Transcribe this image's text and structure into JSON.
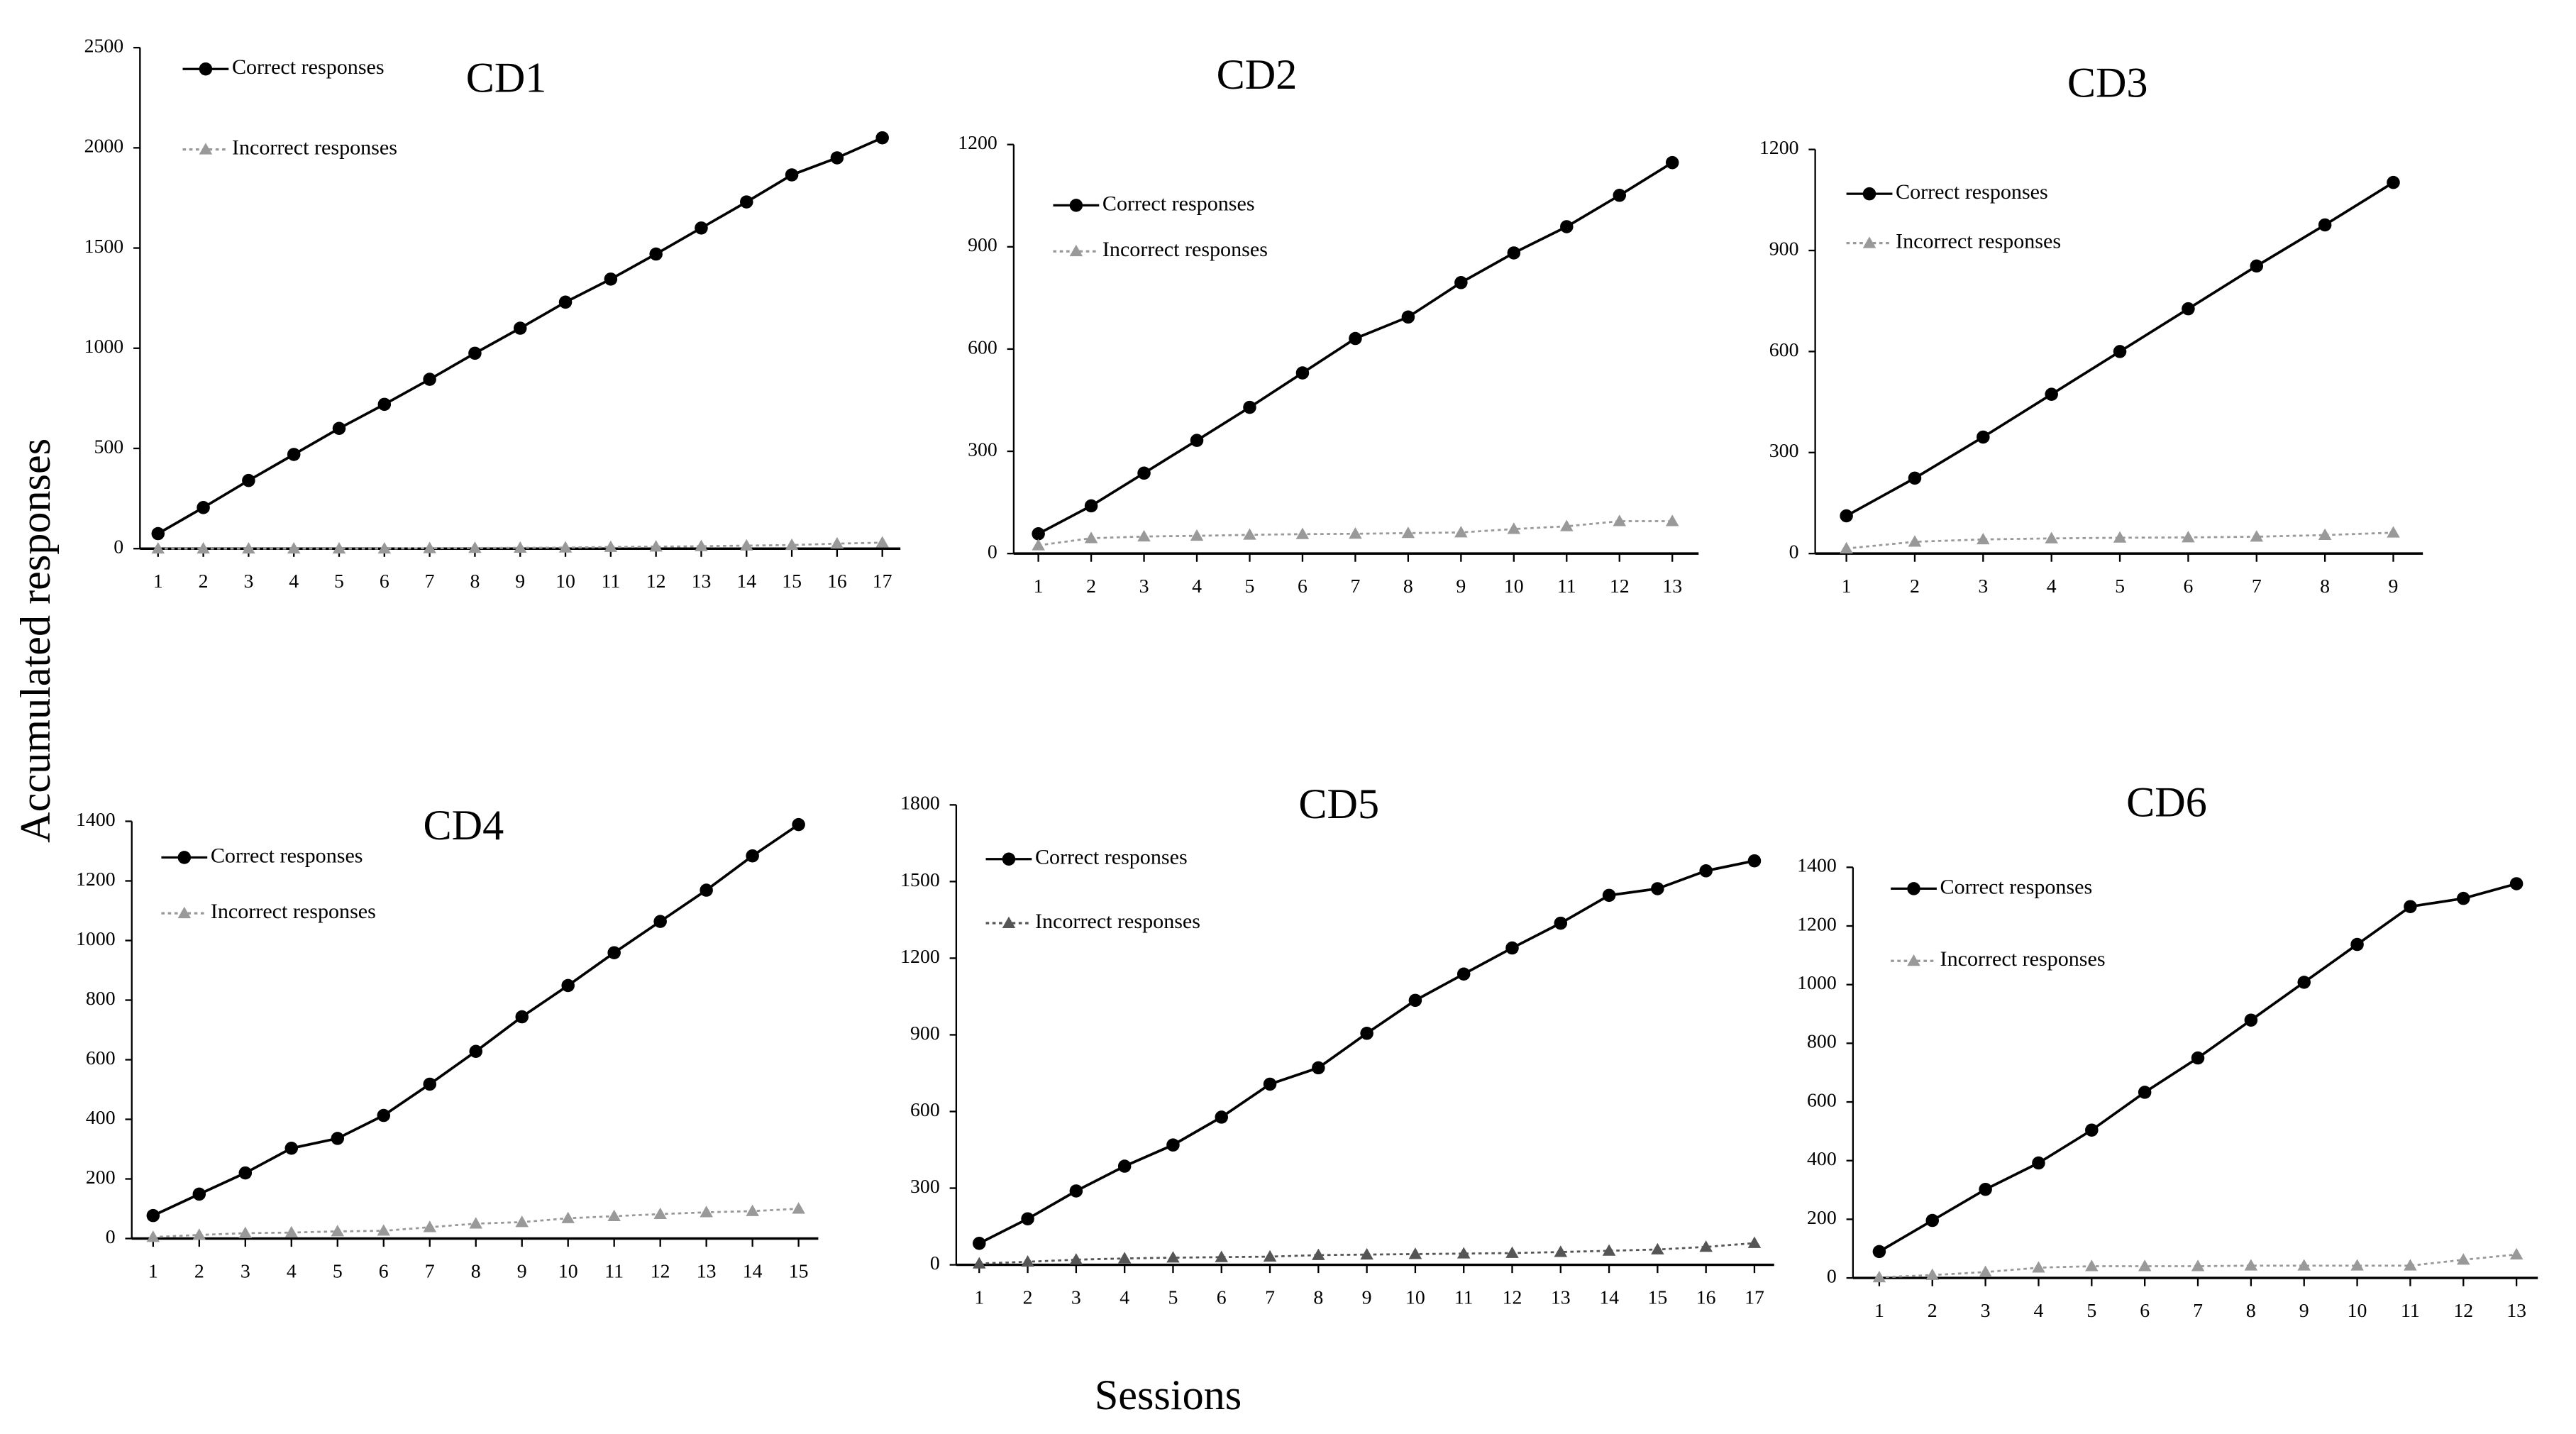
{
  "y_label": "Accumulated responses",
  "x_label": "Sessions",
  "chart_data": [
    {
      "type": "line",
      "title": "CD1",
      "x": [
        1,
        2,
        3,
        4,
        5,
        6,
        7,
        8,
        9,
        10,
        11,
        12,
        13,
        14,
        15,
        16,
        17
      ],
      "xlim": [
        1,
        17
      ],
      "ylim": [
        0,
        2500
      ],
      "yticks": [
        0,
        500,
        1000,
        1500,
        2000,
        2500
      ],
      "series": [
        {
          "name": "Correct responses",
          "color": "#000000",
          "marker": "circle",
          "values": [
            75,
            205,
            340,
            470,
            600,
            720,
            845,
            975,
            1100,
            1230,
            1345,
            1470,
            1600,
            1730,
            1865,
            1950,
            2050
          ]
        },
        {
          "name": "Incorrect responses",
          "color": "#999999",
          "marker": "triangle",
          "values": [
            0,
            0,
            0,
            0,
            0,
            0,
            2,
            3,
            4,
            5,
            8,
            10,
            12,
            15,
            18,
            25,
            30
          ]
        }
      ]
    },
    {
      "type": "line",
      "title": "CD2",
      "x": [
        1,
        2,
        3,
        4,
        5,
        6,
        7,
        8,
        9,
        10,
        11,
        12,
        13
      ],
      "xlim": [
        1,
        13
      ],
      "ylim": [
        0,
        1200
      ],
      "yticks": [
        0,
        300,
        600,
        900,
        1200
      ],
      "series": [
        {
          "name": "Correct responses",
          "color": "#000000",
          "marker": "circle",
          "values": [
            58,
            140,
            236,
            332,
            429,
            530,
            631,
            694,
            795,
            882,
            959,
            1051,
            1147
          ]
        },
        {
          "name": "Incorrect responses",
          "color": "#999999",
          "marker": "triangle",
          "values": [
            24,
            45,
            50,
            52,
            55,
            57,
            58,
            60,
            62,
            72,
            80,
            95,
            95
          ]
        }
      ]
    },
    {
      "type": "line",
      "title": "CD3",
      "x": [
        1,
        2,
        3,
        4,
        5,
        6,
        7,
        8,
        9
      ],
      "xlim": [
        1,
        9
      ],
      "ylim": [
        0,
        1200
      ],
      "yticks": [
        0,
        300,
        600,
        900,
        1200
      ],
      "series": [
        {
          "name": "Correct responses",
          "color": "#000000",
          "marker": "circle",
          "values": [
            112,
            224,
            346,
            473,
            600,
            727,
            854,
            976,
            1102
          ]
        },
        {
          "name": "Incorrect responses",
          "color": "#999999",
          "marker": "triangle",
          "values": [
            15,
            35,
            42,
            45,
            47,
            48,
            50,
            55,
            62
          ]
        }
      ]
    },
    {
      "type": "line",
      "title": "CD4",
      "x": [
        1,
        2,
        3,
        4,
        5,
        6,
        7,
        8,
        9,
        10,
        11,
        12,
        13,
        14,
        15
      ],
      "xlim": [
        1,
        15
      ],
      "ylim": [
        0,
        1400
      ],
      "yticks": [
        0,
        200,
        400,
        600,
        800,
        1000,
        1200,
        1400
      ],
      "series": [
        {
          "name": "Correct responses",
          "color": "#000000",
          "marker": "circle",
          "values": [
            77,
            149,
            220,
            303,
            336,
            413,
            518,
            628,
            744,
            849,
            959,
            1064,
            1169,
            1284,
            1389
          ]
        },
        {
          "name": "Incorrect responses",
          "color": "#999999",
          "marker": "triangle",
          "values": [
            5,
            12,
            18,
            20,
            24,
            26,
            38,
            50,
            55,
            68,
            75,
            82,
            88,
            92,
            100
          ]
        }
      ]
    },
    {
      "type": "line",
      "title": "CD5",
      "x": [
        1,
        2,
        3,
        4,
        5,
        6,
        7,
        8,
        9,
        10,
        11,
        12,
        13,
        14,
        15,
        16,
        17
      ],
      "xlim": [
        1,
        17
      ],
      "ylim": [
        0,
        1800
      ],
      "yticks": [
        0,
        300,
        600,
        900,
        1200,
        1500,
        1800
      ],
      "series": [
        {
          "name": "Correct responses",
          "color": "#000000",
          "marker": "circle",
          "values": [
            84,
            180,
            289,
            386,
            469,
            578,
            707,
            771,
            906,
            1035,
            1138,
            1240,
            1337,
            1446,
            1472,
            1542,
            1581
          ]
        },
        {
          "name": "Incorrect responses",
          "color": "#555555",
          "marker": "triangle",
          "values": [
            5,
            12,
            20,
            25,
            28,
            30,
            32,
            38,
            40,
            42,
            44,
            46,
            50,
            55,
            60,
            70,
            85
          ]
        }
      ]
    },
    {
      "type": "line",
      "title": "CD6",
      "x": [
        1,
        2,
        3,
        4,
        5,
        6,
        7,
        8,
        9,
        10,
        11,
        12,
        13
      ],
      "xlim": [
        1,
        13
      ],
      "ylim": [
        0,
        1400
      ],
      "yticks": [
        0,
        200,
        400,
        600,
        800,
        1000,
        1200,
        1400
      ],
      "series": [
        {
          "name": "Correct responses",
          "color": "#000000",
          "marker": "circle",
          "values": [
            90,
            196,
            302,
            392,
            504,
            633,
            750,
            879,
            1008,
            1137,
            1266,
            1294,
            1344
          ]
        },
        {
          "name": "Incorrect responses",
          "color": "#999999",
          "marker": "triangle",
          "values": [
            2,
            10,
            20,
            35,
            40,
            40,
            40,
            42,
            42,
            42,
            42,
            62,
            80
          ]
        }
      ]
    }
  ]
}
